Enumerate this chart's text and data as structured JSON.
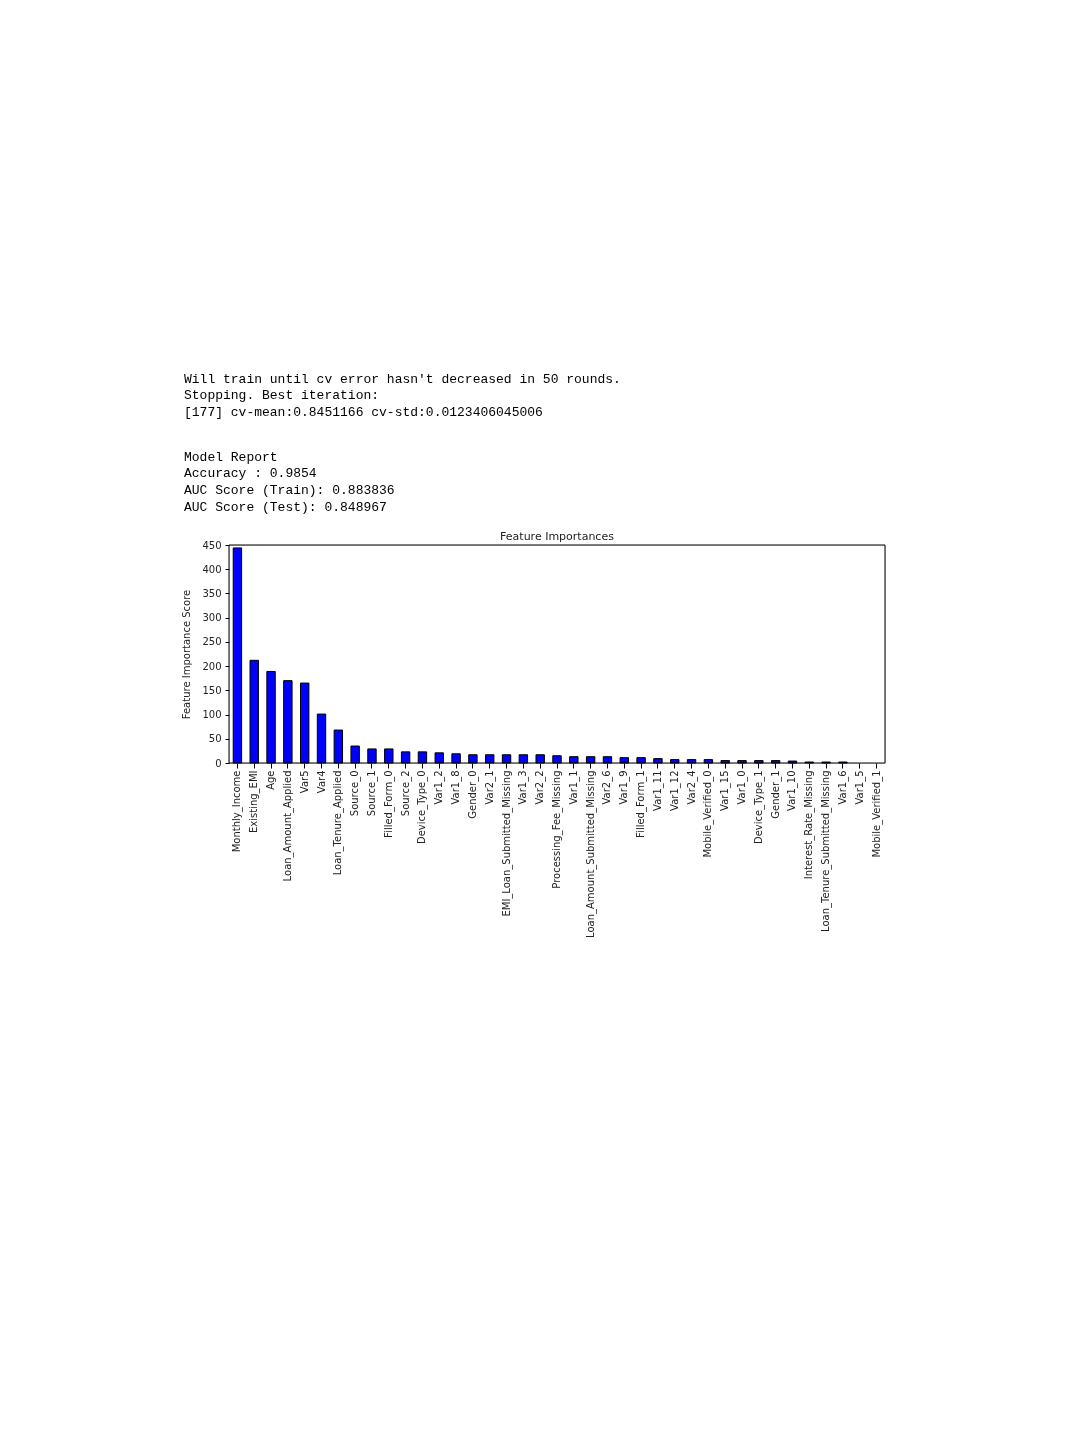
{
  "chart_data": {
    "type": "bar",
    "title": "Feature Importances",
    "ylabel": "Feature Importance Score",
    "categories": [
      "Monthly_Income",
      "Existing_EMI",
      "Age",
      "Loan_Amount_Applied",
      "Var5",
      "Var4",
      "Loan_Tenure_Applied",
      "Source_0",
      "Source_1",
      "Filled_Form_0",
      "Source_2",
      "Device_Type_0",
      "Var1_2",
      "Var1_8",
      "Gender_0",
      "Var2_1",
      "EMI_Loan_Submitted_Missing",
      "Var1_3",
      "Var2_2",
      "Processing_Fee_Missing",
      "Var1_1",
      "Loan_Amount_Submitted_Missing",
      "Var2_6",
      "Var1_9",
      "Filled_Form_1",
      "Var1_11",
      "Var1_12",
      "Var2_4",
      "Mobile_Verified_0",
      "Var1_15",
      "Var1_0",
      "Device_Type_1",
      "Gender_1",
      "Var1_10",
      "Interest_Rate_Missing",
      "Loan_Tenure_Submitted_Missing",
      "Var1_6",
      "Var1_5",
      "Mobile_Verified_1"
    ],
    "values": [
      444,
      212,
      189,
      170,
      165,
      101,
      68,
      35,
      29,
      29,
      23,
      23,
      21,
      19,
      17,
      17,
      17,
      17,
      17,
      15,
      13,
      13,
      13,
      11,
      11,
      9,
      7,
      7,
      7,
      5,
      5,
      5,
      5,
      4,
      2,
      2,
      2,
      null,
      null
    ],
    "color": "#0000ff",
    "ylim": [
      0,
      450
    ],
    "yticks": [
      0,
      50,
      100,
      150,
      200,
      250,
      300,
      350,
      400,
      450
    ],
    "grid": false,
    "annotations": [
      "Will train until cv error hasn't decreased in 50 rounds.",
      "Stopping. Best iteration:",
      "[177] cv-mean:0.8451166 cv-std:0.0123406045006",
      "Model Report",
      "Accuracy : 0.9854",
      "AUC Score (Train): 0.883836",
      "AUC Score (Test): 0.848967"
    ]
  }
}
